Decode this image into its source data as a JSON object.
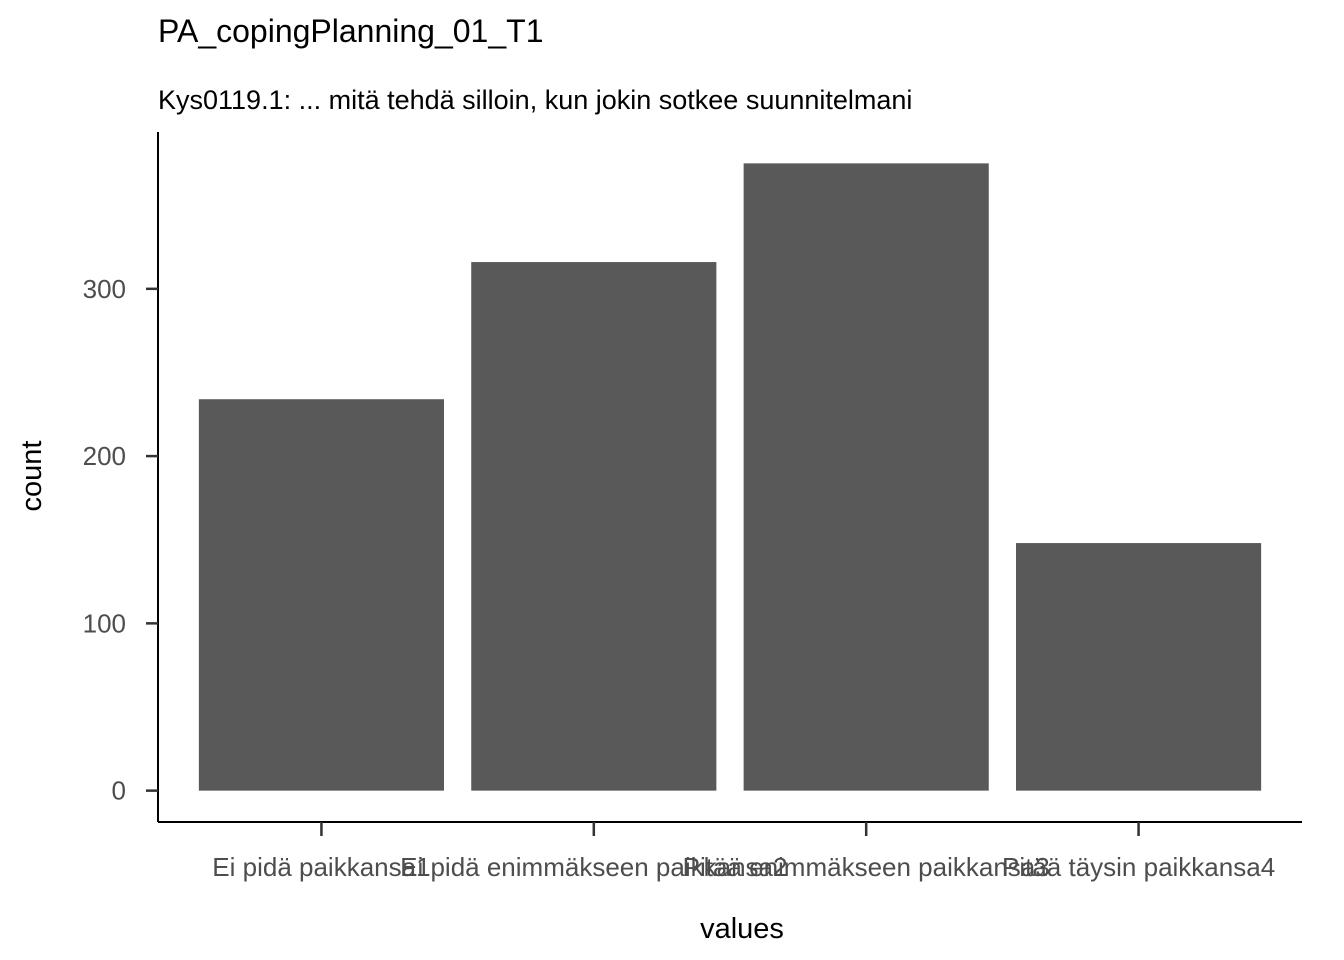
{
  "chart_data": {
    "type": "bar",
    "title": "PA_copingPlanning_01_T1",
    "subtitle": "Kys0119.1: ... mitä tehdä silloin, kun jokin sotkee suunnitelmani",
    "xlabel": "values",
    "ylabel": "count",
    "categories": [
      "Ei pidä paikkansa1",
      "Ei pidä enimmäkseen paikkansa2",
      "Pitää enimmäkseen paikkansa3",
      "Pitää täysin paikkansa4"
    ],
    "values": [
      234,
      316,
      375,
      148
    ],
    "ylim": [
      -18.75,
      393.75
    ],
    "yticks": [
      0,
      100,
      200,
      300
    ],
    "ytick_labels": [
      "0",
      "100",
      "200",
      "300"
    ],
    "bar_color": "#595959",
    "grid": false,
    "legend": "none"
  }
}
